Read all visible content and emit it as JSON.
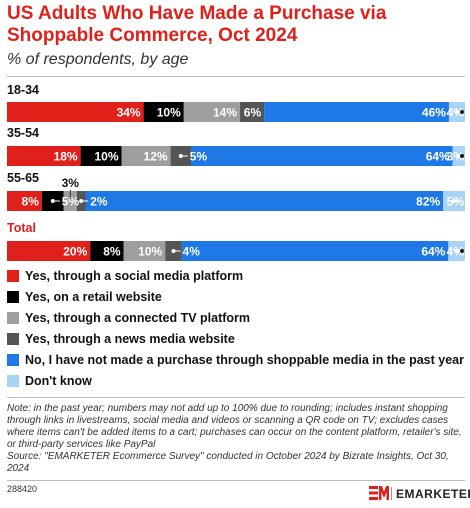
{
  "title": "US Adults Who Have Made a Purchase via Shoppable Commerce, Oct 2024",
  "subtitle": "% of respondents, by age",
  "chart_data": {
    "type": "bar",
    "orientation": "horizontal",
    "stacked": true,
    "categories": [
      "18-34",
      "35-54",
      "55-65",
      "Total"
    ],
    "series": [
      {
        "name": "Yes, through a social media platform",
        "color": "#e0201b",
        "values": [
          34,
          18,
          8,
          20
        ]
      },
      {
        "name": "Yes, on a retail website",
        "color": "#000000",
        "values": [
          10,
          10,
          5,
          8
        ]
      },
      {
        "name": "Yes, through a connected TV platform",
        "color": "#9e9e9e",
        "values": [
          14,
          12,
          3,
          10
        ]
      },
      {
        "name": "Yes, through a news media website",
        "color": "#555555",
        "values": [
          6,
          5,
          2,
          4
        ]
      },
      {
        "name": "No, I have not made a purchase through shoppable media in the past year",
        "color": "#1e78e6",
        "values": [
          46,
          64,
          82,
          64
        ]
      },
      {
        "name": "Don't know",
        "color": "#a9d3f5",
        "values": [
          4,
          3,
          5,
          4
        ]
      }
    ],
    "value_labels": [
      [
        "34%",
        "10%",
        "14%",
        "6%",
        "46%",
        "4%"
      ],
      [
        "18%",
        "10%",
        "12%",
        "5%",
        "64%",
        "3%"
      ],
      [
        "8%",
        "5%",
        "3%",
        "2%",
        "82%",
        "5%"
      ],
      [
        "20%",
        "8%",
        "10%",
        "4%",
        "64%",
        "4%"
      ]
    ],
    "legend_position": "bottom"
  },
  "note": "Note: in the past year; numbers may not add up to 100% due to rounding; includes instant shopping through links in livestreams, social media and videos or scanning a QR code on TV; excludes cases where items can't be added items to a cart; purchases can occur on the content platform, retailer's site, or third-party services like PayPal",
  "source": "Source: \"EMARKETER Ecommerce Survey\" conducted in October 2024 by Bizrate Insights, Oct 30, 2024",
  "chart_id": "288420",
  "brand": "EMARKETER"
}
